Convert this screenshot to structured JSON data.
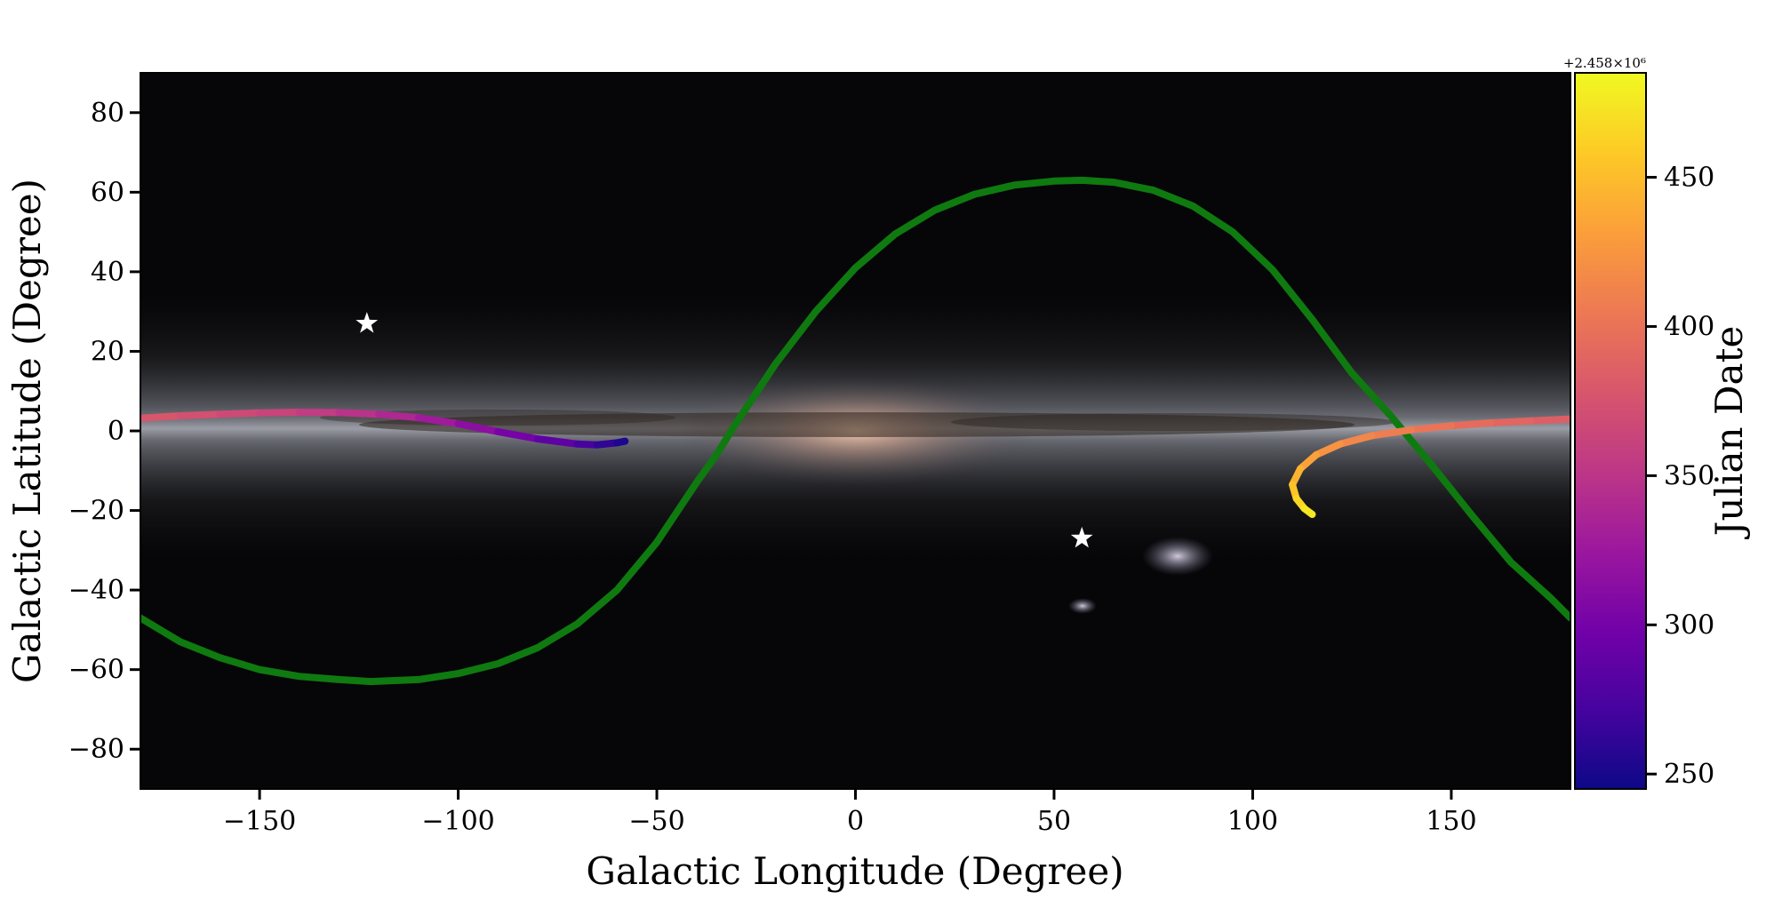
{
  "chart_data": {
    "type": "line",
    "xlabel": "Galactic Longitude (Degree)",
    "ylabel": "Galactic Latitude (Degree)",
    "xlim": [
      -180,
      180
    ],
    "ylim": [
      -90,
      90
    ],
    "xticks": [
      -150,
      -100,
      -50,
      0,
      50,
      100,
      150
    ],
    "xtick_labels": [
      "−150",
      "−100",
      "−50",
      "0",
      "50",
      "100",
      "150"
    ],
    "yticks": [
      -80,
      -60,
      -40,
      -20,
      0,
      20,
      40,
      60,
      80
    ],
    "ytick_labels": [
      "−80",
      "−60",
      "−40",
      "−20",
      "0",
      "20",
      "40",
      "60",
      "80"
    ],
    "grid": false,
    "background": "all-sky map of the Milky Way",
    "series": [
      {
        "kind": "sinusoid-curve",
        "color": "#0f7a0f",
        "x": [
          -180,
          -170,
          -160,
          -150,
          -140,
          -130,
          -122,
          -110,
          -100,
          -90,
          -80,
          -70,
          -60,
          -50,
          -40,
          -35,
          -30,
          -20,
          -10,
          0,
          10,
          20,
          30,
          40,
          50,
          57,
          65,
          75,
          85,
          95,
          105,
          115,
          125,
          135,
          145,
          155,
          165,
          175,
          180
        ],
        "y": [
          -47,
          -53,
          -57,
          -60,
          -61.7,
          -62.5,
          -63,
          -62.5,
          -61,
          -58.5,
          -54.5,
          -48.5,
          -40,
          -28,
          -13,
          -6,
          2,
          17,
          30,
          41,
          49.5,
          55.5,
          59.5,
          61.8,
          62.8,
          63,
          62.5,
          60.5,
          56.5,
          50,
          40.5,
          28,
          14.5,
          3.5,
          -8.5,
          -21,
          -33,
          -42,
          -47
        ]
      },
      {
        "kind": "time-colored-track",
        "x": [
          -180,
          -170,
          -160,
          -150,
          -140,
          -130,
          -120,
          -110,
          -100,
          -90,
          -80,
          -70,
          -65,
          -60,
          -58
        ],
        "y": [
          3.2,
          3.8,
          4.2,
          4.5,
          4.7,
          4.6,
          4.2,
          3.3,
          1.8,
          -0.2,
          -2,
          -3.3,
          -3.5,
          -3,
          -2.6
        ],
        "jd": [
          380,
          375,
          370,
          365,
          360,
          352,
          344,
          334,
          322,
          308,
          294,
          278,
          268,
          256,
          248
        ]
      },
      {
        "kind": "time-colored-track",
        "x": [
          180,
          170,
          160,
          150,
          140,
          130,
          122,
          116,
          112,
          110,
          111,
          113,
          115
        ],
        "y": [
          3,
          2.5,
          2,
          1.3,
          0.3,
          -1.2,
          -3.3,
          -6,
          -9.5,
          -13.5,
          -17,
          -19.5,
          -21
        ],
        "jd": [
          382,
          387,
          392,
          398,
          404,
          411,
          419,
          428,
          438,
          449,
          460,
          470,
          480
        ]
      }
    ],
    "markers": [
      {
        "shape": "star",
        "color": "#ffffff",
        "x": -123,
        "y": 27
      },
      {
        "shape": "star",
        "color": "#ffffff",
        "x": 57,
        "y": -27
      }
    ],
    "colorbar": {
      "label": "Julian Date",
      "colormap": "plasma",
      "range": [
        245,
        485
      ],
      "ticks": [
        250,
        300,
        350,
        400,
        450
      ],
      "tick_labels": [
        "250",
        "300",
        "350",
        "400",
        "450"
      ],
      "offset_text": "+2.458×10⁶",
      "colors": [
        "#0d0887",
        "#46039f",
        "#7201a8",
        "#9c179e",
        "#bd3786",
        "#d8576b",
        "#ed7953",
        "#fb9f3a",
        "#fdca26",
        "#f0f921"
      ]
    }
  }
}
